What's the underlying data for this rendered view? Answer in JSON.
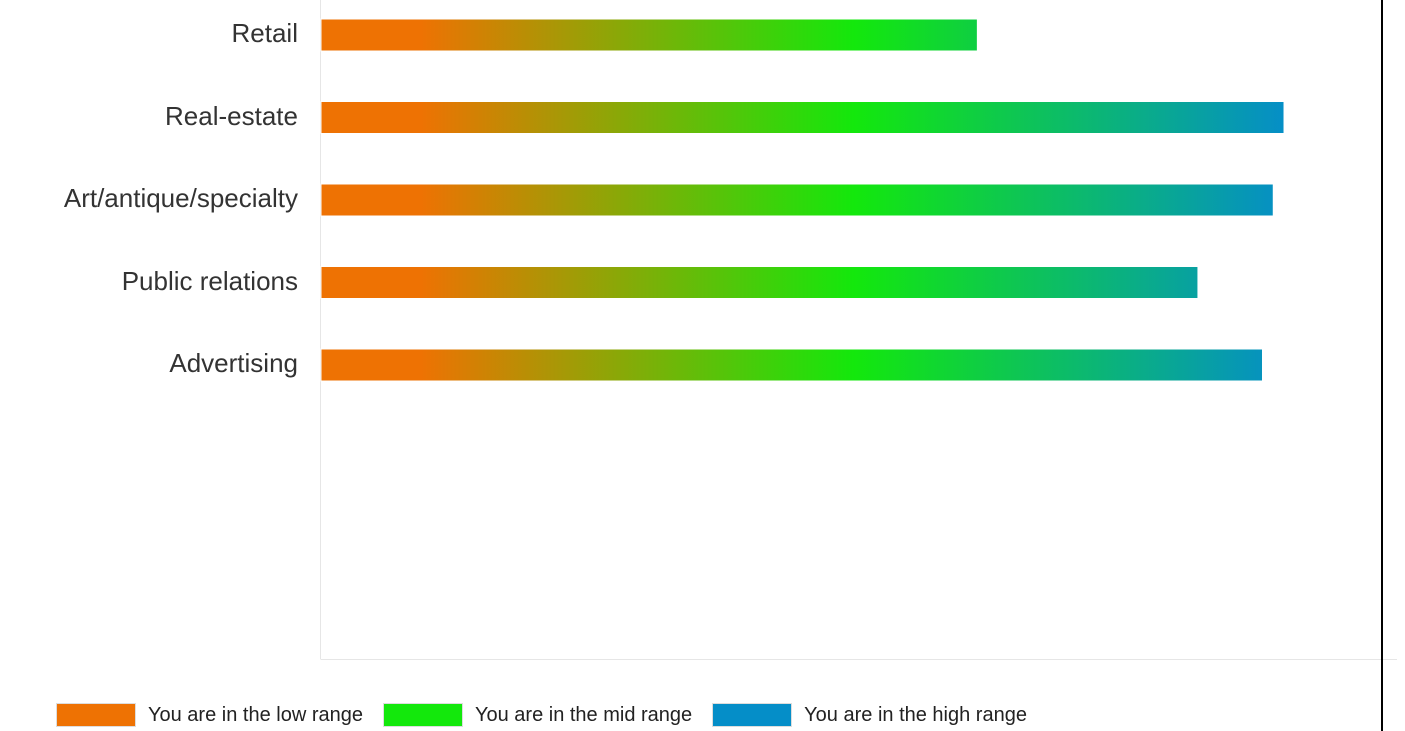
{
  "chart_data": {
    "type": "bar",
    "orientation": "horizontal",
    "categories": [
      "Retail",
      "Real-estate",
      "Art/antique/specialty",
      "Public relations",
      "Advertising"
    ],
    "values": [
      61,
      89.5,
      88.5,
      81.5,
      87.5
    ],
    "xlim": [
      0,
      100
    ],
    "title": "",
    "xlabel": "",
    "ylabel": "",
    "grid": false,
    "legend": {
      "placement": "bottom-left",
      "entries": [
        {
          "label": "You are in the low range",
          "color": "#ee7203"
        },
        {
          "label": "You are in the mid range",
          "color": "#13e80c"
        },
        {
          "label": "You are in the high range",
          "color": "#058ec8"
        }
      ]
    },
    "gradient_stops": [
      "#ee7203",
      "#13e80c",
      "#058ec8"
    ],
    "axis_color": "#e6e6e6",
    "label_color": "#333333"
  }
}
